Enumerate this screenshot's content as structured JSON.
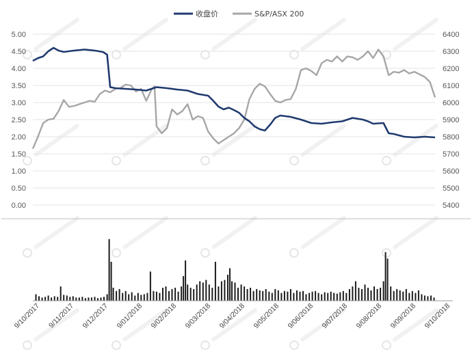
{
  "chart_data": [
    {
      "type": "line",
      "legend": {
        "placement": "top-center",
        "entries": [
          {
            "name": "收盘价",
            "color": "#1f3a6e"
          },
          {
            "name": "S&P/ASX 200",
            "color": "#a6a6a6"
          }
        ]
      },
      "y_left": {
        "range": [
          0,
          5
        ],
        "ticks": [
          "0.00",
          "0.50",
          "1.00",
          "1.50",
          "2.00",
          "2.50",
          "3.00",
          "3.50",
          "4.00",
          "4.50",
          "5.00"
        ]
      },
      "y_right": {
        "range": [
          5400,
          6400
        ],
        "ticks": [
          "5400",
          "5500",
          "5600",
          "5700",
          "5800",
          "5900",
          "6000",
          "6100",
          "6200",
          "6300",
          "6400"
        ]
      },
      "grid": true,
      "series": [
        {
          "name": "收盘价",
          "axis": "left",
          "color": "#1f3a6e",
          "points": [
            [
              0,
              4.22
            ],
            [
              5,
              4.3
            ],
            [
              10,
              4.35
            ],
            [
              15,
              4.5
            ],
            [
              20,
              4.6
            ],
            [
              25,
              4.52
            ],
            [
              30,
              4.48
            ],
            [
              40,
              4.52
            ],
            [
              50,
              4.55
            ],
            [
              60,
              4.52
            ],
            [
              68,
              4.48
            ],
            [
              72,
              4.4
            ],
            [
              75,
              3.45
            ],
            [
              80,
              3.42
            ],
            [
              90,
              3.4
            ],
            [
              100,
              3.38
            ],
            [
              110,
              3.35
            ],
            [
              120,
              3.45
            ],
            [
              130,
              3.42
            ],
            [
              140,
              3.38
            ],
            [
              150,
              3.35
            ],
            [
              160,
              3.25
            ],
            [
              170,
              3.2
            ],
            [
              175,
              3.05
            ],
            [
              180,
              2.88
            ],
            [
              185,
              2.8
            ],
            [
              190,
              2.85
            ],
            [
              195,
              2.78
            ],
            [
              200,
              2.7
            ],
            [
              205,
              2.55
            ],
            [
              210,
              2.45
            ],
            [
              215,
              2.3
            ],
            [
              220,
              2.22
            ],
            [
              225,
              2.18
            ],
            [
              230,
              2.35
            ],
            [
              235,
              2.55
            ],
            [
              240,
              2.62
            ],
            [
              250,
              2.58
            ],
            [
              260,
              2.5
            ],
            [
              270,
              2.4
            ],
            [
              280,
              2.38
            ],
            [
              290,
              2.42
            ],
            [
              300,
              2.45
            ],
            [
              310,
              2.55
            ],
            [
              320,
              2.5
            ],
            [
              325,
              2.45
            ],
            [
              330,
              2.38
            ],
            [
              340,
              2.4
            ],
            [
              345,
              2.1
            ],
            [
              350,
              2.08
            ],
            [
              360,
              2.0
            ],
            [
              370,
              1.98
            ],
            [
              380,
              2.0
            ],
            [
              390,
              1.98
            ]
          ]
        },
        {
          "name": "S&P/ASX 200",
          "axis": "right",
          "color": "#a6a6a6",
          "points": [
            [
              0,
              5730
            ],
            [
              5,
              5800
            ],
            [
              10,
              5880
            ],
            [
              15,
              5900
            ],
            [
              20,
              5905
            ],
            [
              25,
              5950
            ],
            [
              30,
              6015
            ],
            [
              35,
              5975
            ],
            [
              40,
              5980
            ],
            [
              45,
              5990
            ],
            [
              50,
              6000
            ],
            [
              55,
              6010
            ],
            [
              60,
              6005
            ],
            [
              65,
              6050
            ],
            [
              70,
              6070
            ],
            [
              75,
              6060
            ],
            [
              80,
              6080
            ],
            [
              85,
              6085
            ],
            [
              90,
              6105
            ],
            [
              95,
              6100
            ],
            [
              100,
              6065
            ],
            [
              105,
              6080
            ],
            [
              110,
              6010
            ],
            [
              115,
              6075
            ],
            [
              118,
              6095
            ],
            [
              120,
              5860
            ],
            [
              125,
              5820
            ],
            [
              130,
              5850
            ],
            [
              135,
              5960
            ],
            [
              140,
              5930
            ],
            [
              145,
              5950
            ],
            [
              150,
              5990
            ],
            [
              155,
              5900
            ],
            [
              160,
              5920
            ],
            [
              165,
              5910
            ],
            [
              170,
              5830
            ],
            [
              175,
              5790
            ],
            [
              180,
              5760
            ],
            [
              185,
              5780
            ],
            [
              190,
              5800
            ],
            [
              195,
              5820
            ],
            [
              200,
              5850
            ],
            [
              205,
              5900
            ],
            [
              210,
              6020
            ],
            [
              215,
              6080
            ],
            [
              220,
              6110
            ],
            [
              225,
              6095
            ],
            [
              230,
              6050
            ],
            [
              235,
              6010
            ],
            [
              240,
              6000
            ],
            [
              245,
              6015
            ],
            [
              250,
              6020
            ],
            [
              255,
              6080
            ],
            [
              260,
              6190
            ],
            [
              265,
              6200
            ],
            [
              270,
              6185
            ],
            [
              275,
              6160
            ],
            [
              280,
              6230
            ],
            [
              285,
              6250
            ],
            [
              290,
              6240
            ],
            [
              295,
              6270
            ],
            [
              300,
              6240
            ],
            [
              305,
              6270
            ],
            [
              310,
              6265
            ],
            [
              315,
              6250
            ],
            [
              320,
              6270
            ],
            [
              325,
              6300
            ],
            [
              330,
              6260
            ],
            [
              335,
              6310
            ],
            [
              340,
              6270
            ],
            [
              345,
              6160
            ],
            [
              350,
              6180
            ],
            [
              355,
              6175
            ],
            [
              360,
              6190
            ],
            [
              365,
              6170
            ],
            [
              370,
              6180
            ],
            [
              375,
              6165
            ],
            [
              380,
              6150
            ],
            [
              385,
              6120
            ],
            [
              390,
              6030
            ]
          ]
        }
      ]
    },
    {
      "type": "bar",
      "categories": [
        "9/10/2017",
        "9/11/2017",
        "9/12/2017",
        "9/01/2018",
        "9/02/2018",
        "9/03/2018",
        "9/04/2018",
        "9/05/2018",
        "9/06/2018",
        "9/07/2018",
        "9/08/2018",
        "9/09/2018",
        "9/10/2018"
      ],
      "volume_bars": [
        {
          "x": 3,
          "v": 0.1
        },
        {
          "x": 6,
          "v": 0.07
        },
        {
          "x": 9,
          "v": 0.05
        },
        {
          "x": 12,
          "v": 0.06
        },
        {
          "x": 15,
          "v": 0.08
        },
        {
          "x": 18,
          "v": 0.05
        },
        {
          "x": 21,
          "v": 0.07
        },
        {
          "x": 24,
          "v": 0.06
        },
        {
          "x": 27,
          "v": 0.22
        },
        {
          "x": 30,
          "v": 0.09
        },
        {
          "x": 33,
          "v": 0.08
        },
        {
          "x": 36,
          "v": 0.06
        },
        {
          "x": 39,
          "v": 0.07
        },
        {
          "x": 42,
          "v": 0.05
        },
        {
          "x": 45,
          "v": 0.05
        },
        {
          "x": 48,
          "v": 0.06
        },
        {
          "x": 51,
          "v": 0.04
        },
        {
          "x": 54,
          "v": 0.05
        },
        {
          "x": 57,
          "v": 0.05
        },
        {
          "x": 60,
          "v": 0.06
        },
        {
          "x": 63,
          "v": 0.04
        },
        {
          "x": 66,
          "v": 0.05
        },
        {
          "x": 69,
          "v": 0.06
        },
        {
          "x": 72,
          "v": 0.1
        },
        {
          "x": 74,
          "v": 0.95
        },
        {
          "x": 76,
          "v": 0.6
        },
        {
          "x": 78,
          "v": 0.2
        },
        {
          "x": 81,
          "v": 0.15
        },
        {
          "x": 84,
          "v": 0.18
        },
        {
          "x": 87,
          "v": 0.12
        },
        {
          "x": 90,
          "v": 0.15
        },
        {
          "x": 93,
          "v": 0.1
        },
        {
          "x": 96,
          "v": 0.13
        },
        {
          "x": 99,
          "v": 0.08
        },
        {
          "x": 102,
          "v": 0.12
        },
        {
          "x": 105,
          "v": 0.09
        },
        {
          "x": 108,
          "v": 0.1
        },
        {
          "x": 111,
          "v": 0.12
        },
        {
          "x": 114,
          "v": 0.45
        },
        {
          "x": 117,
          "v": 0.15
        },
        {
          "x": 120,
          "v": 0.14
        },
        {
          "x": 123,
          "v": 0.12
        },
        {
          "x": 126,
          "v": 0.2
        },
        {
          "x": 129,
          "v": 0.22
        },
        {
          "x": 132,
          "v": 0.15
        },
        {
          "x": 135,
          "v": 0.18
        },
        {
          "x": 138,
          "v": 0.2
        },
        {
          "x": 141,
          "v": 0.14
        },
        {
          "x": 144,
          "v": 0.22
        },
        {
          "x": 146,
          "v": 0.38
        },
        {
          "x": 148,
          "v": 0.62
        },
        {
          "x": 150,
          "v": 0.25
        },
        {
          "x": 153,
          "v": 0.2
        },
        {
          "x": 156,
          "v": 0.18
        },
        {
          "x": 159,
          "v": 0.25
        },
        {
          "x": 162,
          "v": 0.3
        },
        {
          "x": 165,
          "v": 0.28
        },
        {
          "x": 168,
          "v": 0.32
        },
        {
          "x": 171,
          "v": 0.25
        },
        {
          "x": 174,
          "v": 0.2
        },
        {
          "x": 177,
          "v": 0.6
        },
        {
          "x": 180,
          "v": 0.22
        },
        {
          "x": 183,
          "v": 0.3
        },
        {
          "x": 186,
          "v": 0.32
        },
        {
          "x": 189,
          "v": 0.4
        },
        {
          "x": 191,
          "v": 0.5
        },
        {
          "x": 193,
          "v": 0.3
        },
        {
          "x": 196,
          "v": 0.28
        },
        {
          "x": 199,
          "v": 0.2
        },
        {
          "x": 202,
          "v": 0.25
        },
        {
          "x": 205,
          "v": 0.22
        },
        {
          "x": 208,
          "v": 0.18
        },
        {
          "x": 211,
          "v": 0.2
        },
        {
          "x": 214,
          "v": 0.15
        },
        {
          "x": 217,
          "v": 0.18
        },
        {
          "x": 220,
          "v": 0.16
        },
        {
          "x": 223,
          "v": 0.15
        },
        {
          "x": 226,
          "v": 0.18
        },
        {
          "x": 229,
          "v": 0.14
        },
        {
          "x": 232,
          "v": 0.12
        },
        {
          "x": 235,
          "v": 0.18
        },
        {
          "x": 238,
          "v": 0.16
        },
        {
          "x": 241,
          "v": 0.12
        },
        {
          "x": 244,
          "v": 0.15
        },
        {
          "x": 247,
          "v": 0.14
        },
        {
          "x": 250,
          "v": 0.18
        },
        {
          "x": 253,
          "v": 0.12
        },
        {
          "x": 256,
          "v": 0.16
        },
        {
          "x": 259,
          "v": 0.14
        },
        {
          "x": 262,
          "v": 0.15
        },
        {
          "x": 265,
          "v": 0.1
        },
        {
          "x": 268,
          "v": 0.12
        },
        {
          "x": 271,
          "v": 0.14
        },
        {
          "x": 274,
          "v": 0.15
        },
        {
          "x": 277,
          "v": 0.12
        },
        {
          "x": 280,
          "v": 0.1
        },
        {
          "x": 283,
          "v": 0.13
        },
        {
          "x": 286,
          "v": 0.12
        },
        {
          "x": 289,
          "v": 0.14
        },
        {
          "x": 292,
          "v": 0.12
        },
        {
          "x": 295,
          "v": 0.11
        },
        {
          "x": 298,
          "v": 0.13
        },
        {
          "x": 301,
          "v": 0.15
        },
        {
          "x": 304,
          "v": 0.12
        },
        {
          "x": 307,
          "v": 0.18
        },
        {
          "x": 310,
          "v": 0.22
        },
        {
          "x": 313,
          "v": 0.3
        },
        {
          "x": 316,
          "v": 0.2
        },
        {
          "x": 319,
          "v": 0.18
        },
        {
          "x": 322,
          "v": 0.25
        },
        {
          "x": 325,
          "v": 0.2
        },
        {
          "x": 328,
          "v": 0.16
        },
        {
          "x": 331,
          "v": 0.22
        },
        {
          "x": 334,
          "v": 0.18
        },
        {
          "x": 337,
          "v": 0.2
        },
        {
          "x": 340,
          "v": 0.3
        },
        {
          "x": 342,
          "v": 0.75
        },
        {
          "x": 344,
          "v": 0.65
        },
        {
          "x": 347,
          "v": 0.22
        },
        {
          "x": 350,
          "v": 0.15
        },
        {
          "x": 353,
          "v": 0.18
        },
        {
          "x": 356,
          "v": 0.16
        },
        {
          "x": 359,
          "v": 0.14
        },
        {
          "x": 362,
          "v": 0.18
        },
        {
          "x": 365,
          "v": 0.12
        },
        {
          "x": 368,
          "v": 0.15
        },
        {
          "x": 371,
          "v": 0.12
        },
        {
          "x": 374,
          "v": 0.16
        },
        {
          "x": 377,
          "v": 0.1
        },
        {
          "x": 380,
          "v": 0.08
        },
        {
          "x": 383,
          "v": 0.07
        },
        {
          "x": 386,
          "v": 0.08
        },
        {
          "x": 389,
          "v": 0.05
        }
      ]
    }
  ]
}
